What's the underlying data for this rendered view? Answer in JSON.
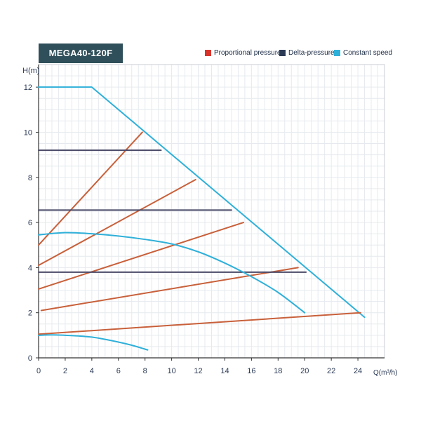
{
  "chart_data": {
    "type": "line",
    "title": "MEGA40-120F",
    "ylabel": "H(m)",
    "xlabel": "Q(m³/h)",
    "xlim": [
      0,
      26
    ],
    "ylim": [
      0,
      13
    ],
    "x_ticks": [
      "0",
      "2",
      "4",
      "6",
      "8",
      "10",
      "12",
      "14",
      "16",
      "18",
      "20",
      "22",
      "24"
    ],
    "y_ticks": [
      "0",
      "2",
      "4",
      "6",
      "8",
      "10",
      "12"
    ],
    "grid": true,
    "legend_position": "top-right",
    "legend": [
      {
        "label": "Proportional pressure",
        "color": "#d9342b"
      },
      {
        "label": "Delta-pressure",
        "color": "#2b3a55"
      },
      {
        "label": "Constant speed",
        "color": "#2fb0d9"
      }
    ],
    "series": [
      {
        "group": "Constant speed",
        "color": "#2fb0d9",
        "style": "line",
        "points": [
          [
            0,
            12
          ],
          [
            4,
            12
          ],
          [
            24.5,
            1.8
          ]
        ]
      },
      {
        "group": "Proportional pressure",
        "color": "#c8603a",
        "style": "line",
        "points": [
          [
            0,
            5
          ],
          [
            7.8,
            10
          ]
        ]
      },
      {
        "group": "Proportional pressure",
        "color": "#c8603a",
        "style": "line",
        "points": [
          [
            0,
            4.1
          ],
          [
            11.8,
            7.9
          ]
        ]
      },
      {
        "group": "Proportional pressure",
        "color": "#c8603a",
        "style": "line",
        "points": [
          [
            0,
            3.05
          ],
          [
            15.4,
            6
          ]
        ]
      },
      {
        "group": "Proportional pressure",
        "color": "#c8603a",
        "style": "line",
        "points": [
          [
            0.2,
            2.1
          ],
          [
            19.5,
            4
          ]
        ]
      },
      {
        "group": "Proportional pressure",
        "color": "#c8603a",
        "style": "line",
        "points": [
          [
            0,
            1.05
          ],
          [
            24.2,
            2
          ]
        ]
      },
      {
        "group": "Delta-pressure",
        "color": "#4a4a68",
        "style": "line",
        "points": [
          [
            0,
            9.2
          ],
          [
            9.2,
            9.2
          ]
        ]
      },
      {
        "group": "Delta-pressure",
        "color": "#4a4a68",
        "style": "line",
        "points": [
          [
            0,
            6.55
          ],
          [
            14.5,
            6.55
          ]
        ]
      },
      {
        "group": "Delta-pressure",
        "color": "#4a4a68",
        "style": "line",
        "points": [
          [
            0,
            3.8
          ],
          [
            20.1,
            3.8
          ]
        ]
      },
      {
        "group": "Constant speed",
        "color": "#2fb0d9",
        "style": "curve",
        "points": [
          [
            0,
            5.45
          ],
          [
            2,
            5.55
          ],
          [
            4,
            5.5
          ],
          [
            6,
            5.4
          ],
          [
            8,
            5.25
          ],
          [
            10,
            5.05
          ],
          [
            12,
            4.7
          ],
          [
            14,
            4.2
          ],
          [
            16,
            3.6
          ],
          [
            18,
            2.9
          ],
          [
            20,
            2.0
          ]
        ]
      },
      {
        "group": "Constant speed",
        "color": "#2fb0d9",
        "style": "curve",
        "points": [
          [
            0,
            1.0
          ],
          [
            1,
            1.02
          ],
          [
            2,
            1.0
          ],
          [
            3,
            0.97
          ],
          [
            4,
            0.92
          ],
          [
            5,
            0.82
          ],
          [
            6,
            0.7
          ],
          [
            7,
            0.56
          ],
          [
            8.2,
            0.35
          ]
        ]
      }
    ]
  }
}
